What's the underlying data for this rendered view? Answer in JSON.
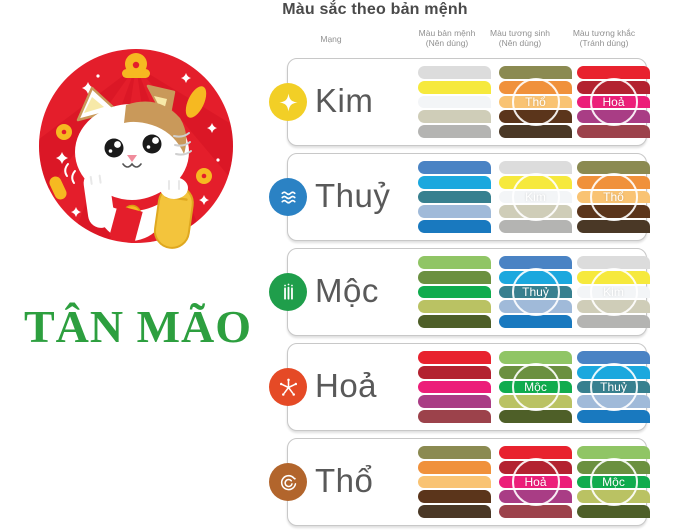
{
  "page": {
    "title": "Màu sắc theo bản mệnh"
  },
  "left": {
    "year_label": "TÂN MÃO",
    "year_color": "#2d9f3f",
    "illustration": "maneki-neko-lucky-cat-in-red-circle"
  },
  "table": {
    "headers": [
      {
        "line1": "Mạng",
        "line2": ""
      },
      {
        "line1": "Màu bản mệnh",
        "line2": "(Nên dùng)"
      },
      {
        "line1": "Màu tương sinh",
        "line2": "(Nên dùng)"
      },
      {
        "line1": "Màu tương khắc",
        "line2": "(Tránh dùng)"
      }
    ],
    "palettes": {
      "kim": [
        "#dcdcdc",
        "#f6e93d",
        "#f3f5f7",
        "#cfcdb8",
        "#b4b4b2"
      ],
      "thuy": [
        "#4a83c4",
        "#1ba8de",
        "#37808f",
        "#a0bad9",
        "#1979bf"
      ],
      "moc": [
        "#90c565",
        "#6b9040",
        "#10ac4e",
        "#bac263",
        "#4e5f28"
      ],
      "hoa": [
        "#e8222e",
        "#b32230",
        "#ec1e79",
        "#a93d85",
        "#9c424b"
      ],
      "tho": [
        "#8b8a51",
        "#f0913b",
        "#f9c373",
        "#5b351b",
        "#4a3826"
      ]
    },
    "rows": [
      {
        "id": "kim",
        "name": "Kim",
        "icon": "metal-sparkle-icon",
        "icon_color": "#f2cf26",
        "ban_menh": "kim",
        "tuong_sinh": "tho",
        "tuong_sinh_label": "Thổ",
        "tuong_khac": "hoa",
        "tuong_khac_label": "Hoả"
      },
      {
        "id": "thuy",
        "name": "Thuỷ",
        "icon": "water-waves-icon",
        "icon_color": "#2b82c4",
        "ban_menh": "thuy",
        "tuong_sinh": "kim",
        "tuong_sinh_label": "Kim",
        "tuong_khac": "tho",
        "tuong_khac_label": "Thổ"
      },
      {
        "id": "moc",
        "name": "Mộc",
        "icon": "wood-bamboo-icon",
        "icon_color": "#1f9e4b",
        "ban_menh": "moc",
        "tuong_sinh": "thuy",
        "tuong_sinh_label": "Thuỷ",
        "tuong_khac": "kim",
        "tuong_khac_label": "Kim"
      },
      {
        "id": "hoa",
        "name": "Hoả",
        "icon": "fire-burst-icon",
        "icon_color": "#e54a26",
        "ban_menh": "hoa",
        "tuong_sinh": "moc",
        "tuong_sinh_label": "Mộc",
        "tuong_khac": "thuy",
        "tuong_khac_label": "Thuỷ"
      },
      {
        "id": "tho",
        "name": "Thổ",
        "icon": "earth-spiral-icon",
        "icon_color": "#b2652c",
        "ban_menh": "tho",
        "tuong_sinh": "hoa",
        "tuong_sinh_label": "Hoả",
        "tuong_khac": "moc",
        "tuong_khac_label": "Mộc"
      }
    ]
  }
}
